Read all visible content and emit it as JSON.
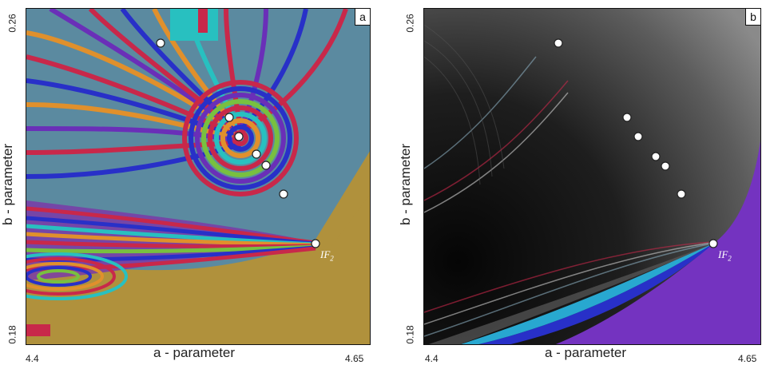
{
  "panel_a": {
    "tag": "a",
    "x_min_label": "4.4",
    "x_max_label": "4.65",
    "y_min_label": "0.18",
    "y_max_label": "0.26",
    "xlabel": "a - parameter",
    "ylabel": "b - parameter",
    "point_label": "IF",
    "point_label_sub": "2"
  },
  "panel_b": {
    "tag": "b",
    "x_min_label": "4.4",
    "x_max_label": "4.65",
    "y_min_label": "0.18",
    "y_max_label": "0.26",
    "xlabel": "a - parameter",
    "ylabel": "b - parameter",
    "point_label": "IF",
    "point_label_sub": "2"
  },
  "colors": {
    "teal_blue": "#5b8aa0",
    "olive": "#b0913c",
    "red": "#c8284a",
    "blue": "#2830c8",
    "purple": "#6a2fb8",
    "cyan": "#28c0c0",
    "orange": "#e0902c",
    "green": "#78c040",
    "dark": "#151515",
    "violet": "#7433c0"
  }
}
